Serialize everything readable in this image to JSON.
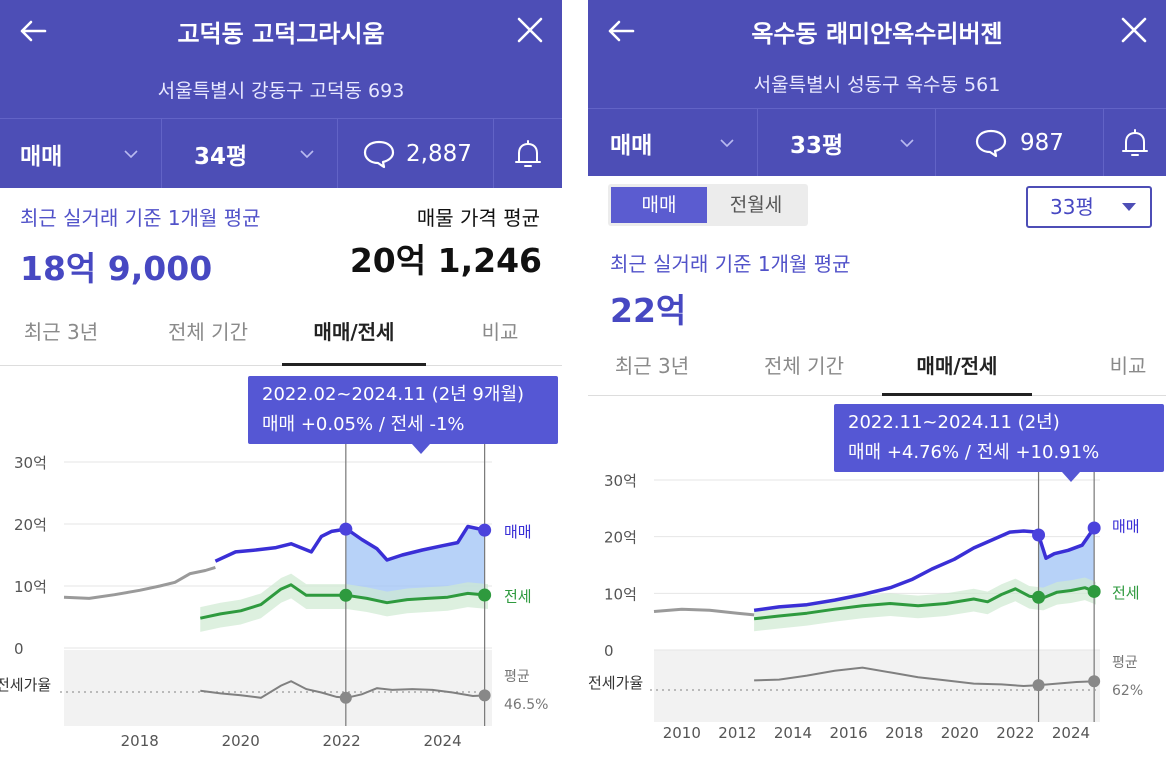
{
  "left": {
    "header": {
      "title": "고덕동 고덕그라시움",
      "address": "서울특별시 강동구 고덕동 693"
    },
    "selectors": {
      "deal_type": "매매",
      "area": "34평",
      "comment_count": "2,887"
    },
    "summary": {
      "recent_label": "최근 실거래 기준 1개월 평균",
      "recent_value": "18억 9,000",
      "listing_label": "매물 가격 평균",
      "listing_value": "20억 1,246"
    },
    "tabs": [
      "최근 3년",
      "전체 기간",
      "매매/전세",
      "비교"
    ],
    "active_tab": 2,
    "tooltip": {
      "period": "2022.02~2024.11 (2년 9개월)",
      "change": "매매 +0.05%  /  전세 -1%"
    }
  },
  "right": {
    "header": {
      "title": "옥수동 래미안옥수리버젠",
      "address": "서울특별시 성동구 옥수동 561"
    },
    "selectors": {
      "deal_type": "매매",
      "area": "33평",
      "comment_count": "987"
    },
    "toggle": [
      "매매",
      "전월세"
    ],
    "area_select": "33평",
    "summary": {
      "recent_label": "최근 실거래 기준 1개월 평균",
      "recent_value": "22억"
    },
    "tabs": [
      "최근 3년",
      "전체 기간",
      "매매/전세",
      "비교"
    ],
    "active_tab": 2,
    "tooltip": {
      "period": "2022.11~2024.11 (2년)",
      "change": "매매 +4.76%  /  전세 +10.91%"
    }
  },
  "colors": {
    "brand": "#4d4eb6",
    "sale_line": "#3a2fd6",
    "jeonse_line": "#2e9a3e",
    "history_line": "#9a9a9a",
    "range_fill": "#9fc3f5",
    "ratio_line": "#808080"
  },
  "chart_data": [
    {
      "type": "line",
      "y_ticks": [
        "30억",
        "20억",
        "10억",
        "0"
      ],
      "ylim": [
        0,
        30
      ],
      "x_ticks": [
        "2018",
        "2020",
        "2022",
        "2024"
      ],
      "xlim": [
        2016.5,
        2024.9
      ],
      "ratio_label": "전세가율",
      "sale_end_label": "매매",
      "jeonse_end_label": "전세",
      "avg_label": "평균",
      "avg_value": "46.5%",
      "range": [
        "2022.02",
        "2024.11"
      ],
      "series": [
        {
          "key": "history",
          "x": [
            2016.5,
            2017.0,
            2017.5,
            2018.0,
            2018.4,
            2018.7,
            2019.0,
            2019.3,
            2019.5
          ],
          "values": [
            8.2,
            8.0,
            8.6,
            9.3,
            10.0,
            10.6,
            12.0,
            12.5,
            13.0
          ]
        },
        {
          "name": "매매",
          "key": "sale",
          "x": [
            2019.5,
            2019.9,
            2020.3,
            2020.7,
            2021.0,
            2021.4,
            2021.6,
            2021.8,
            2022.1,
            2022.4,
            2022.7,
            2022.9,
            2023.2,
            2023.6,
            2024.0,
            2024.3,
            2024.5,
            2024.9
          ],
          "values": [
            14.0,
            15.5,
            15.8,
            16.2,
            16.8,
            15.5,
            18.0,
            18.8,
            19.2,
            17.5,
            16.0,
            14.2,
            15.0,
            15.8,
            16.5,
            17.0,
            19.6,
            18.9
          ]
        },
        {
          "name": "전세",
          "key": "jeonse",
          "x": [
            2019.2,
            2019.6,
            2020.0,
            2020.4,
            2020.8,
            2021.0,
            2021.3,
            2021.7,
            2022.1,
            2022.5,
            2022.9,
            2023.3,
            2023.7,
            2024.1,
            2024.5,
            2024.9
          ],
          "values": [
            4.8,
            5.5,
            6.0,
            7.0,
            9.5,
            10.2,
            8.5,
            8.5,
            8.5,
            8.0,
            7.3,
            7.8,
            8.0,
            8.2,
            8.8,
            8.5
          ]
        },
        {
          "key": "ratio",
          "x": [
            2019.2,
            2019.6,
            2020.0,
            2020.4,
            2020.8,
            2021.0,
            2021.3,
            2021.6,
            2021.9,
            2022.1,
            2022.4,
            2022.7,
            2023.0,
            2023.4,
            2023.8,
            2024.2,
            2024.6,
            2024.9
          ],
          "values": [
            52,
            49,
            47,
            44,
            58,
            63,
            54,
            50,
            45,
            44,
            48,
            55,
            53,
            54,
            53,
            50,
            46,
            47
          ]
        }
      ]
    },
    {
      "type": "line",
      "y_ticks": [
        "30억",
        "20억",
        "10억",
        "0"
      ],
      "ylim": [
        0,
        30
      ],
      "x_ticks": [
        "2010",
        "2012",
        "2014",
        "2016",
        "2018",
        "2020",
        "2022",
        "2024"
      ],
      "xlim": [
        2009.0,
        2024.9
      ],
      "ratio_label": "전세가율",
      "sale_end_label": "매매",
      "jeonse_end_label": "전세",
      "avg_label": "평균",
      "avg_value": "62%",
      "range": [
        "2022.11",
        "2024.11"
      ],
      "series": [
        {
          "key": "history",
          "x": [
            2009.0,
            2010.0,
            2011.0,
            2012.0,
            2012.6
          ],
          "values": [
            6.8,
            7.2,
            7.0,
            6.5,
            6.2
          ]
        },
        {
          "name": "매매",
          "key": "sale",
          "x": [
            2012.6,
            2013.5,
            2014.5,
            2015.5,
            2016.5,
            2017.5,
            2018.3,
            2019.0,
            2019.8,
            2020.5,
            2021.2,
            2021.8,
            2022.3,
            2022.8,
            2023.1,
            2023.4,
            2023.9,
            2024.4,
            2024.9
          ],
          "values": [
            7.0,
            7.6,
            8.0,
            8.8,
            9.8,
            11.0,
            12.5,
            14.3,
            16.0,
            18.0,
            19.5,
            20.8,
            21.0,
            20.8,
            16.2,
            17.0,
            17.6,
            18.5,
            22.0
          ]
        },
        {
          "name": "전세",
          "key": "jeonse",
          "x": [
            2012.6,
            2013.5,
            2014.5,
            2015.5,
            2016.5,
            2017.5,
            2018.5,
            2019.5,
            2020.5,
            2021.0,
            2021.5,
            2022.0,
            2022.5,
            2023.0,
            2023.5,
            2024.0,
            2024.5,
            2024.9
          ],
          "values": [
            5.5,
            6.0,
            6.5,
            7.2,
            7.8,
            8.2,
            7.8,
            8.2,
            9.0,
            8.5,
            9.8,
            10.8,
            9.5,
            9.2,
            10.2,
            10.5,
            11.0,
            10.2
          ]
        },
        {
          "key": "ratio",
          "x": [
            2012.6,
            2013.5,
            2014.5,
            2015.5,
            2016.5,
            2017.5,
            2018.5,
            2019.5,
            2020.5,
            2021.5,
            2022.3,
            2022.8,
            2023.5,
            2024.2,
            2024.9
          ],
          "values": [
            62,
            63,
            68,
            74,
            78,
            72,
            66,
            62,
            58,
            57,
            55,
            56,
            58,
            60,
            61
          ]
        }
      ]
    }
  ]
}
